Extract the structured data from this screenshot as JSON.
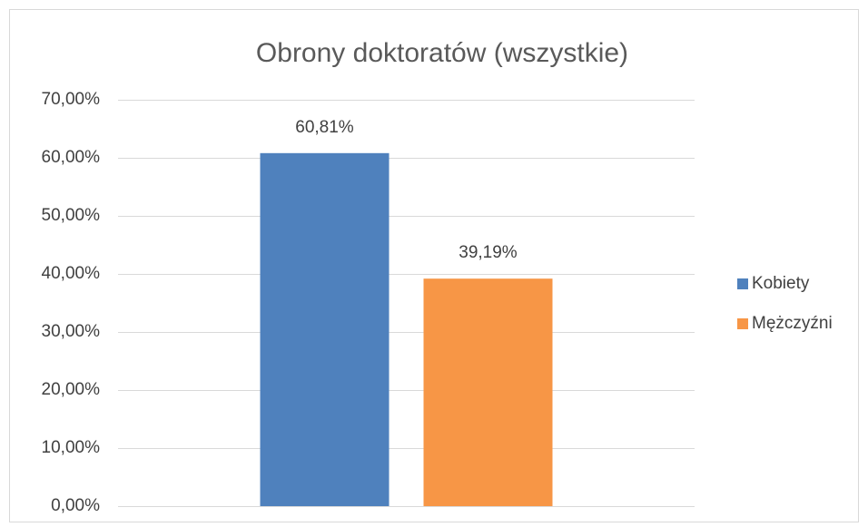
{
  "chart_data": {
    "type": "bar",
    "title": "Obrony doktoratów (wszystkie)",
    "categories": [
      null
    ],
    "series": [
      {
        "name": "Kobiety",
        "color": "#4f81bd",
        "values": [
          60.81
        ],
        "value_labels": [
          "60,81%"
        ]
      },
      {
        "name": "Mężczyźni",
        "color": "#f79646",
        "values": [
          39.19
        ],
        "value_labels": [
          "39,19%"
        ]
      }
    ],
    "ylim": [
      0,
      70
    ],
    "yticks": [
      {
        "value": 0,
        "label": "0,00%"
      },
      {
        "value": 10,
        "label": "10,00%"
      },
      {
        "value": 20,
        "label": "20,00%"
      },
      {
        "value": 30,
        "label": "30,00%"
      },
      {
        "value": 40,
        "label": "40,00%"
      },
      {
        "value": 50,
        "label": "50,00%"
      },
      {
        "value": 60,
        "label": "60,00%"
      },
      {
        "value": 70,
        "label": "70,00%"
      }
    ],
    "grid": true,
    "legend": "right"
  }
}
